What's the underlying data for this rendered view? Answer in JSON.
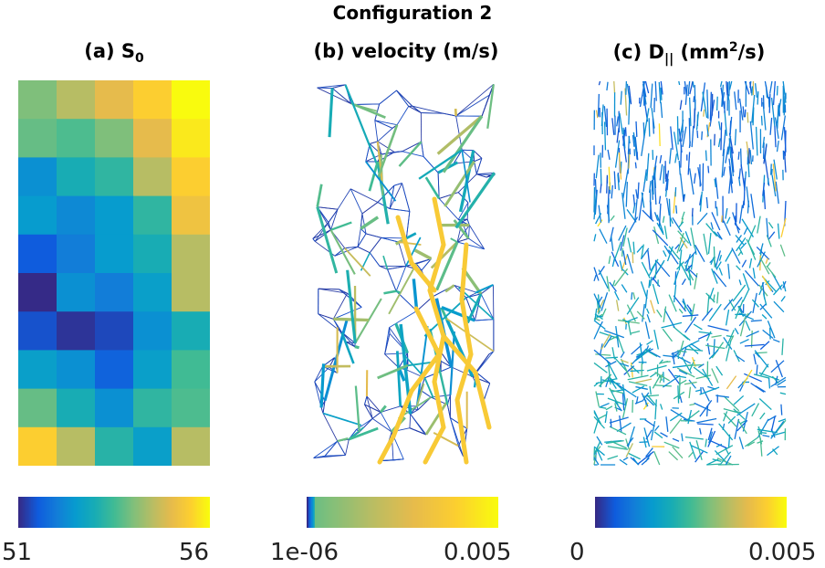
{
  "figure": {
    "title": "Configuration 2"
  },
  "chart_data": [
    {
      "type": "heatmap",
      "panel_label": "(a) S",
      "panel_label_sub": "0",
      "rows": 10,
      "cols": 5,
      "values": [
        [
          54.0,
          54.5,
          55.0,
          55.5,
          56.0
        ],
        [
          53.8,
          53.6,
          54.0,
          55.0,
          55.8
        ],
        [
          52.3,
          53.0,
          53.3,
          54.5,
          55.5
        ],
        [
          52.5,
          52.2,
          52.5,
          53.3,
          55.2
        ],
        [
          51.5,
          52.0,
          52.5,
          53.0,
          54.5
        ],
        [
          51.0,
          52.3,
          52.0,
          52.6,
          54.5
        ],
        [
          51.4,
          51.1,
          51.3,
          52.3,
          53.0
        ],
        [
          52.6,
          52.3,
          51.6,
          52.6,
          53.5
        ],
        [
          53.8,
          53.0,
          52.3,
          53.3,
          53.6
        ],
        [
          55.5,
          54.5,
          53.2,
          52.6,
          54.5
        ]
      ],
      "colorbar": {
        "min": 51,
        "max": 56,
        "min_label": "51",
        "max_label": "56",
        "colormap": "parula"
      }
    },
    {
      "type": "network",
      "panel_label": "(b) velocity (m/s)",
      "colorbar": {
        "min": 1e-06,
        "max": 0.005,
        "min_label": "1e-06",
        "max_label": "0.005",
        "colormap": "parula"
      }
    },
    {
      "type": "segments",
      "panel_label": "(c) D",
      "panel_label_sub": "||",
      "panel_label_tail": " (mm",
      "panel_label_sup": "2",
      "panel_label_end": "/s)",
      "colorbar": {
        "min": 0,
        "max": 0.005,
        "min_label": "0",
        "max_label": "0.005",
        "colormap": "parula"
      }
    }
  ]
}
